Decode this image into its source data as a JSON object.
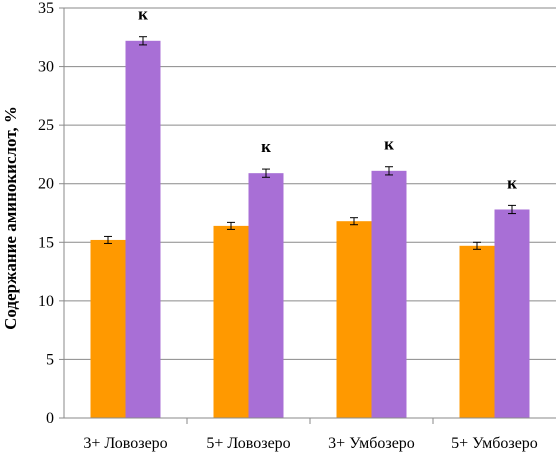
{
  "chart_data": {
    "type": "bar",
    "ylabel": "Содержание аминокислот, %",
    "xlabel": "",
    "ylim": [
      0,
      35
    ],
    "yticks": [
      0,
      5,
      10,
      15,
      20,
      25,
      30,
      35
    ],
    "grid": true,
    "legend": "none",
    "categories": [
      "3+ Ловозеро",
      "5+ Ловозеро",
      "3+ Умбозеро",
      "5+ Умбозеро"
    ],
    "series": [
      {
        "color": "#ff9900",
        "values": [
          15.2,
          16.4,
          16.8,
          14.7
        ],
        "errors": [
          0.3,
          0.3,
          0.3,
          0.3
        ],
        "annotations": [
          "",
          "",
          "",
          ""
        ]
      },
      {
        "color": "#a86fd6",
        "values": [
          32.2,
          20.9,
          21.1,
          17.8
        ],
        "errors": [
          0.35,
          0.35,
          0.35,
          0.35
        ],
        "annotations": [
          "к",
          "к",
          "к",
          "к"
        ]
      }
    ]
  }
}
